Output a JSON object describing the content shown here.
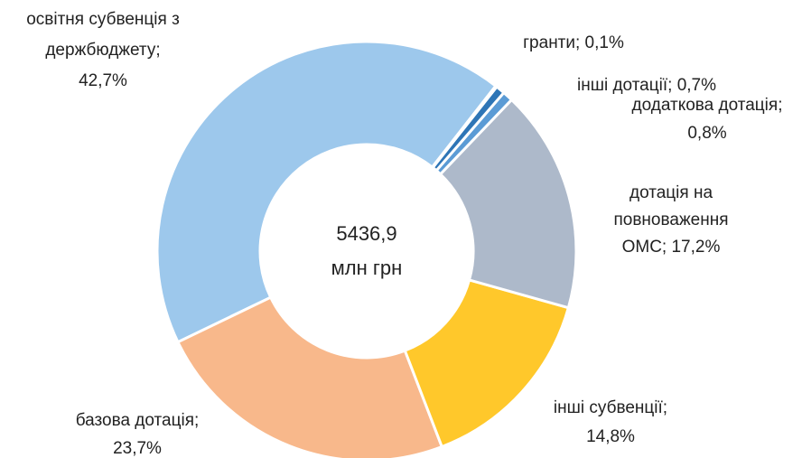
{
  "chart_data": {
    "type": "donut",
    "values": [
      0.1,
      0.7,
      0.8,
      17.2,
      14.8,
      23.7,
      42.7
    ],
    "value_labels": [
      [
        "гранти; 0,1%"
      ],
      [
        "інші дотації; 0,7%"
      ],
      [
        "додаткова дотація;",
        "0,8%"
      ],
      [
        "дотація на",
        "повноваження",
        "ОМС; 17,2%"
      ],
      [
        "інші субвенції;",
        "14,8%"
      ],
      [
        "базова дотація;",
        "23,7%"
      ],
      [
        "освітня субвенція з",
        "держбюджету;",
        "42,7%"
      ]
    ],
    "colors": [
      "#1f4e79",
      "#2e75b6",
      "#5b9bd5",
      "#adb9ca",
      "#ffc82b",
      "#f8b88b",
      "#9dc8ec"
    ],
    "center_text": [
      "5436,9",
      "млн грн"
    ]
  }
}
